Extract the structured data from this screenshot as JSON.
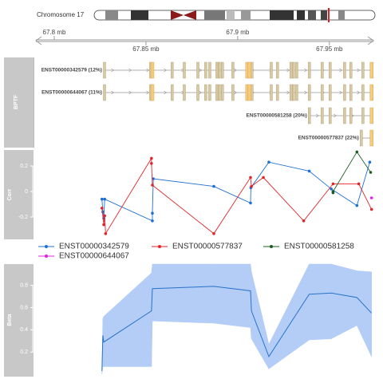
{
  "chart_data": {
    "type": "genome-tracks",
    "chromosome": "Chromosome 17",
    "xlim": [
      67.79,
      67.974
    ],
    "xticks": [
      {
        "value": 67.8,
        "label": "67.8 mb"
      },
      {
        "value": 67.85,
        "label": "67.85 mb"
      },
      {
        "value": 67.9,
        "label": "67.9 mb"
      },
      {
        "value": 67.95,
        "label": "67.95 mb"
      }
    ],
    "gene_track": {
      "title": "BPTF",
      "exon_color": "#d9c9a3",
      "utr_color": "#f5cb7a",
      "transcripts": [
        {
          "label": "ENST00000342579 (12%)",
          "start": 67.8274,
          "end": 67.973,
          "exons": [
            67.8274,
            67.8526,
            67.8643,
            67.8709,
            67.8783,
            67.8826,
            67.8848,
            67.8887,
            67.89,
            67.8917,
            67.8974,
            67.9078,
            67.9183,
            67.9217,
            67.9291,
            67.9304,
            67.9322,
            67.9391,
            67.9461,
            67.9504,
            67.9583,
            67.9617,
            67.9683
          ],
          "utr": [
            67.8535,
            67.9052,
            67.9065,
            67.973
          ]
        },
        {
          "label": "ENST00000644067 (11%)",
          "start": 67.8274,
          "end": 67.973,
          "exons": [
            67.8274,
            67.8526,
            67.8643,
            67.8709,
            67.8783,
            67.8826,
            67.8848,
            67.8887,
            67.89,
            67.8917,
            67.8974,
            67.9078,
            67.9183,
            67.9217,
            67.9291,
            67.9304,
            67.9322,
            67.9391,
            67.9461,
            67.9504,
            67.9583,
            67.9617,
            67.9683
          ],
          "utr": [
            67.8535,
            67.9052,
            67.9065,
            67.973
          ]
        },
        {
          "label": "ENST00000581258 (20%)",
          "start": 67.9391,
          "end": 67.973,
          "exons": [
            67.9391,
            67.9461,
            67.9504,
            67.9583,
            67.9617,
            67.9683
          ],
          "utr": [
            67.973
          ]
        },
        {
          "label": "ENST00000577837 (22%)",
          "start": 67.9674,
          "end": 67.973,
          "exons": [
            67.9674
          ],
          "utr": [
            67.973
          ]
        }
      ]
    },
    "corr_track": {
      "title": "Corr",
      "ylim": [
        -0.375,
        0.325
      ],
      "yticks": [
        -0.2,
        0,
        0.2
      ],
      "series": [
        {
          "name": "ENST00000342579",
          "color": "#1f6fd6",
          "x": [
            67.826,
            67.8265,
            67.827,
            67.8275,
            67.8535,
            67.8535,
            67.854,
            67.887,
            67.907,
            67.9072,
            67.917,
            67.939,
            67.951,
            67.965,
            67.972
          ],
          "values": [
            -0.06,
            -0.16,
            -0.21,
            -0.06,
            -0.23,
            -0.17,
            0.1,
            0.04,
            -0.09,
            0.03,
            0.23,
            0.16,
            0.02,
            -0.11,
            0.23
          ]
        },
        {
          "name": "ENST00000577837",
          "color": "#e0262b",
          "x": [
            67.826,
            67.827,
            67.8275,
            67.828,
            67.853,
            67.853,
            67.8535,
            67.887,
            67.907,
            67.9075,
            67.914,
            67.936,
            67.952,
            67.966,
            67.973
          ],
          "values": [
            -0.13,
            -0.26,
            -0.19,
            -0.33,
            0.26,
            0.22,
            0.05,
            -0.33,
            0.11,
            0.04,
            0.11,
            -0.23,
            0.06,
            0.06,
            -0.14
          ]
        },
        {
          "name": "ENST00000581258",
          "color": "#1b5e20",
          "x": [
            67.952,
            67.952,
            67.965,
            67.9725
          ],
          "values": [
            -0.01,
            0,
            0.31,
            0.15
          ]
        },
        {
          "name": "ENST00000644067",
          "color": "#e020e0",
          "x": [
            67.973
          ],
          "values": [
            -0.05
          ]
        }
      ]
    },
    "beta_track": {
      "title": "Beta",
      "ylim": [
        -0.02,
        0.99
      ],
      "yticks": [
        0.2,
        0.4,
        0.6,
        0.8
      ],
      "color": "#2a72c9",
      "band_color": "#b3cdf7",
      "x": [
        67.826,
        67.8265,
        67.827,
        67.853,
        67.8535,
        67.887,
        67.907,
        67.9075,
        67.917,
        67.939,
        67.951,
        67.965,
        67.973
      ],
      "values": [
        0.03,
        0.35,
        0.29,
        0.57,
        0.77,
        0.79,
        0.75,
        0.57,
        0.16,
        0.72,
        0.73,
        0.69,
        0.55
      ],
      "lower": [
        0.0,
        0.07,
        0.07,
        0.07,
        0.48,
        0.46,
        0.42,
        0.32,
        0.05,
        0.31,
        0.32,
        0.44,
        0.16
      ],
      "upper": [
        0.05,
        0.5,
        0.52,
        0.91,
        0.99,
        0.99,
        0.99,
        0.92,
        0.27,
        0.99,
        0.99,
        0.93,
        0.92
      ]
    }
  }
}
